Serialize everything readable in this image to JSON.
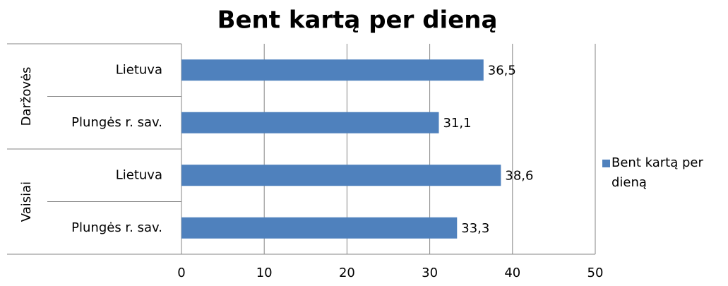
{
  "chart_data": {
    "type": "bar",
    "orientation": "horizontal",
    "title": "Bent kartą per dieną",
    "groups": [
      {
        "label": "Daržovės",
        "categories": [
          "Lietuva",
          "Plungės r. sav."
        ]
      },
      {
        "label": "Vaisiai",
        "categories": [
          "Lietuva",
          "Plungės r. sav."
        ]
      }
    ],
    "series": [
      {
        "name": "Bent kartą per dieną",
        "color": "#4f81bd",
        "values": [
          36.5,
          31.1,
          38.6,
          33.3
        ],
        "value_labels": [
          "36,5",
          "31,1",
          "38,6",
          "33,3"
        ]
      }
    ],
    "xlim": [
      0,
      50
    ],
    "xticks": [
      0,
      10,
      20,
      30,
      40,
      50
    ],
    "grid": true,
    "legend": "right"
  }
}
